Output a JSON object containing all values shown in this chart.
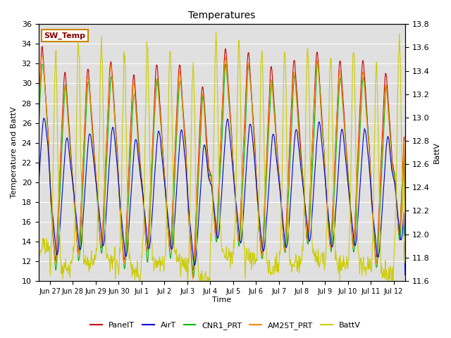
{
  "title": "Temperatures",
  "xlabel": "Time",
  "ylabel_left": "Temperature and BattV",
  "ylabel_right": "BattV",
  "ylim_left": [
    10,
    36
  ],
  "ylim_right": [
    11.6,
    13.8
  ],
  "xtick_labels": [
    "Jun 27",
    "Jun 28",
    "Jun 29",
    "Jun 30",
    "Jul 1",
    "Jul 2",
    "Jul 3",
    "Jul 4",
    "Jul 5",
    "Jul 6",
    "Jul 7",
    "Jul 8",
    "Jul 9",
    "Jul 10",
    "Jul 11",
    "Jul 12"
  ],
  "yticks_left": [
    10,
    12,
    14,
    16,
    18,
    20,
    22,
    24,
    26,
    28,
    30,
    32,
    34,
    36
  ],
  "yticks_right": [
    11.6,
    11.8,
    12.0,
    12.2,
    12.4,
    12.6,
    12.8,
    13.0,
    13.2,
    13.4,
    13.6,
    13.8
  ],
  "sw_temp_label": "SW_Temp",
  "legend_entries": [
    "PanelT",
    "AirT",
    "CNR1_PRT",
    "AM25T_PRT",
    "BattV"
  ],
  "line_colors": {
    "PanelT": "#cc0000",
    "AirT": "#0000cc",
    "CNR1_PRT": "#00bb00",
    "AM25T_PRT": "#ff8800",
    "BattV": "#cccc00"
  },
  "background_color": "#ffffff",
  "plot_bg_color": "#e0e0e0",
  "grid_color": "#ffffff",
  "sw_temp_bg": "#ffffff",
  "sw_temp_fg": "#880000",
  "sw_temp_border": "#cc8800"
}
